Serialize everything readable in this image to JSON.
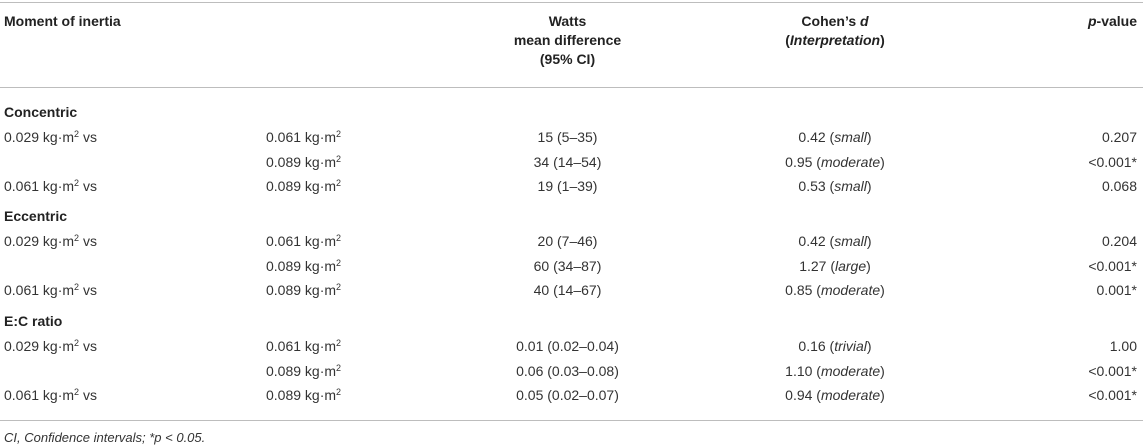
{
  "header": {
    "col1": "Moment of inertia",
    "col3_line1": "Watts",
    "col3_line2": "mean difference",
    "col3_line3": "(95% CI)",
    "col4_main": "Cohen’s ",
    "col4_d": "d",
    "col4_interp": "Interpretation",
    "col5_p": "p",
    "col5_rest": "-value"
  },
  "sections": [
    {
      "title": "Concentric",
      "rows": [
        {
          "from": "0.029 kg·m",
          "from_sup": "2",
          "from_suffix": " vs",
          "to": "0.061 kg·m",
          "to_sup": "2",
          "diff": "15 (5–35)",
          "d": "0.42",
          "interp": "small",
          "p": "0.207"
        },
        {
          "from": "",
          "from_sup": "",
          "from_suffix": "",
          "to": "0.089 kg·m",
          "to_sup": "2",
          "diff": "34 (14–54)",
          "d": "0.95",
          "interp": "moderate",
          "p": "<0.001*"
        },
        {
          "from": "0.061 kg·m",
          "from_sup": "2",
          "from_suffix": " vs",
          "to": "0.089 kg·m",
          "to_sup": "2",
          "diff": "19 (1–39)",
          "d": "0.53",
          "interp": "small",
          "p": "0.068"
        }
      ]
    },
    {
      "title": "Eccentric",
      "rows": [
        {
          "from": "0.029 kg·m",
          "from_sup": "2",
          "from_suffix": " vs",
          "to": "0.061 kg·m",
          "to_sup": "2",
          "diff": "20 (7–46)",
          "d": "0.42",
          "interp": "small",
          "p": "0.204"
        },
        {
          "from": "",
          "from_sup": "",
          "from_suffix": "",
          "to": "0.089 kg·m",
          "to_sup": "2",
          "diff": "60 (34–87)",
          "d": "1.27",
          "interp": "large",
          "p": "<0.001*"
        },
        {
          "from": "0.061 kg·m",
          "from_sup": "2",
          "from_suffix": " vs",
          "to": "0.089 kg·m",
          "to_sup": "2",
          "diff": "40 (14–67)",
          "d": "0.85",
          "interp": "moderate",
          "p": "0.001*"
        }
      ]
    },
    {
      "title": "E:C ratio",
      "rows": [
        {
          "from": "0.029 kg·m",
          "from_sup": "2",
          "from_suffix": " vs",
          "to": "0.061 kg·m",
          "to_sup": "2",
          "diff": "0.01 (0.02–0.04)",
          "d": "0.16",
          "interp": "trivial",
          "p": "1.00"
        },
        {
          "from": "",
          "from_sup": "",
          "from_suffix": "",
          "to": "0.089 kg·m",
          "to_sup": "2",
          "diff": "0.06 (0.03–0.08)",
          "d": "1.10",
          "interp": "moderate",
          "p": "<0.001*"
        },
        {
          "from": "0.061 kg·m",
          "from_sup": "2",
          "from_suffix": " vs",
          "to": "0.089 kg·m",
          "to_sup": "2",
          "diff": "0.05 (0.02–0.07)",
          "d": "0.94",
          "interp": "moderate",
          "p": "<0.001*"
        }
      ]
    }
  ],
  "footnote": "CI, Confidence intervals; *p < 0.05."
}
